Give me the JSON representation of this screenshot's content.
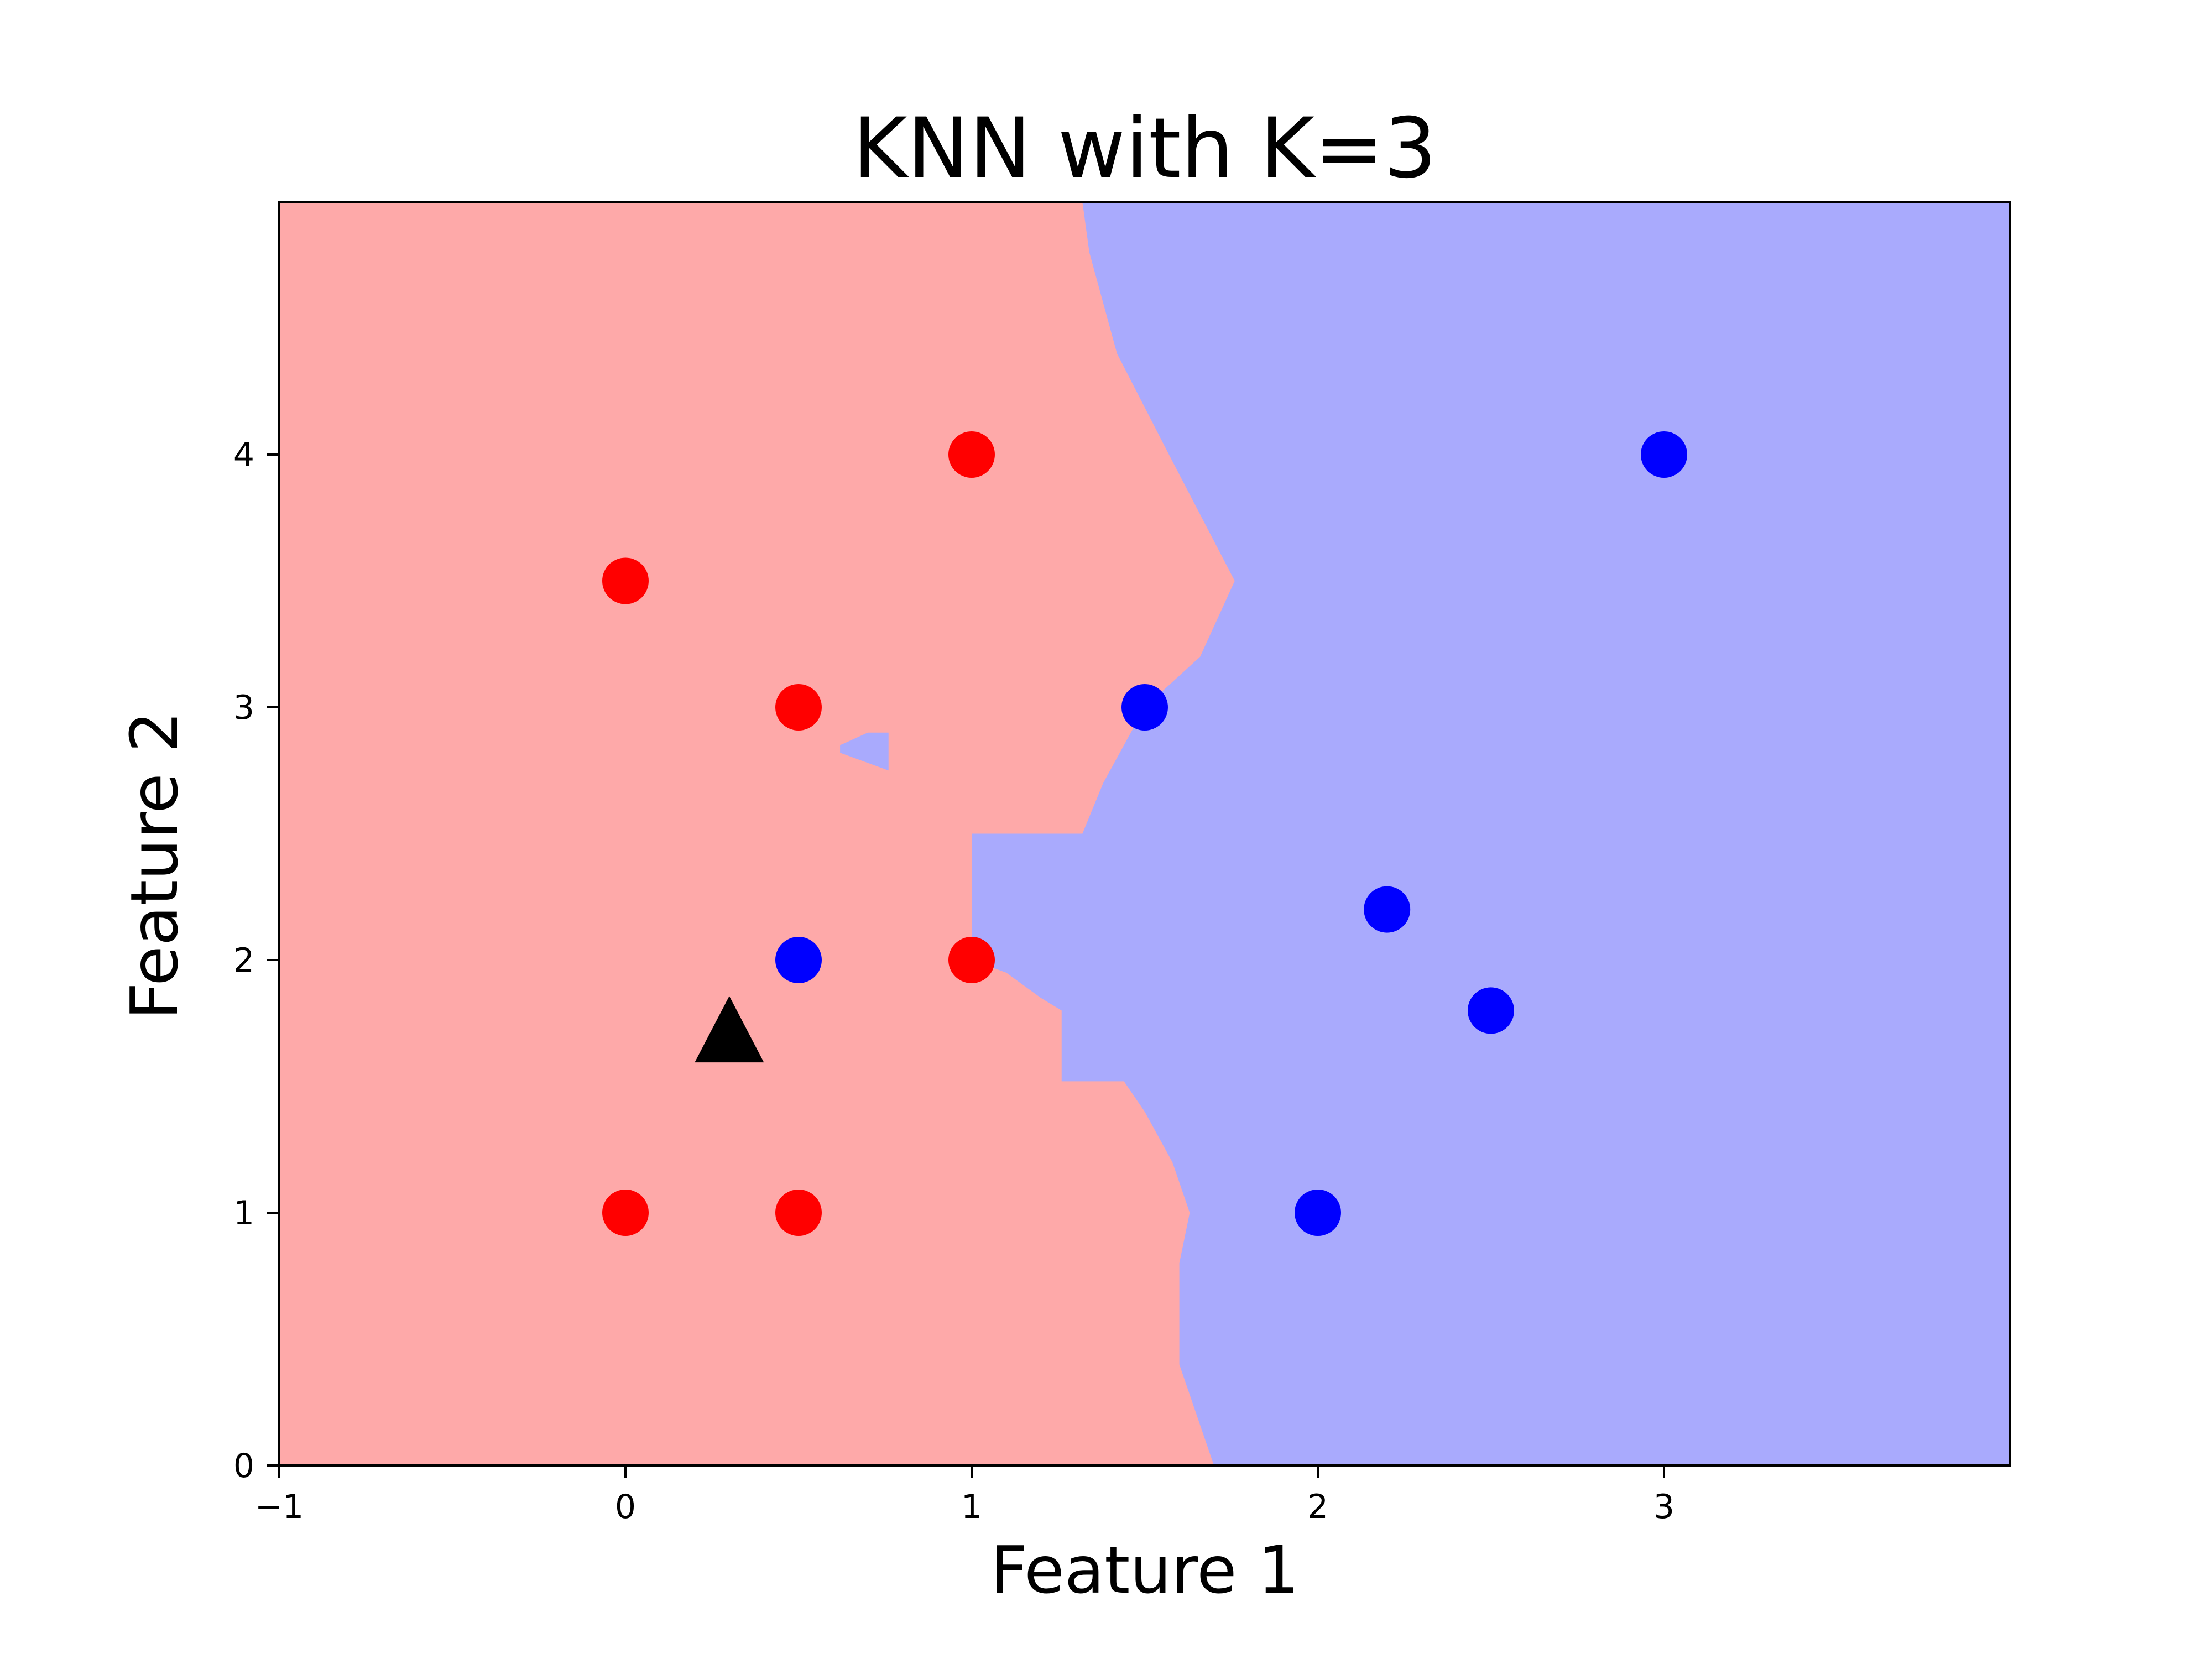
{
  "chart_data": {
    "type": "scatter",
    "title": "KNN with K=3",
    "xlabel": "Feature 1",
    "ylabel": "Feature 2",
    "xlim": [
      -1,
      4
    ],
    "ylim": [
      0,
      5
    ],
    "xticks": [
      {
        "value": -1,
        "label": "−1"
      },
      {
        "value": 0,
        "label": "0"
      },
      {
        "value": 1,
        "label": "1"
      },
      {
        "value": 2,
        "label": "2"
      },
      {
        "value": 3,
        "label": "3"
      }
    ],
    "yticks": [
      {
        "value": 0,
        "label": "0"
      },
      {
        "value": 1,
        "label": "1"
      },
      {
        "value": 2,
        "label": "2"
      },
      {
        "value": 3,
        "label": "3"
      },
      {
        "value": 4,
        "label": "4"
      }
    ],
    "grid": false,
    "colors": {
      "class_red_point": "#ff0000",
      "class_blue_point": "#0000ff",
      "region_red": "#fea9a9",
      "region_blue": "#a9aafd",
      "query_point": "#000000"
    },
    "decision_region": {
      "description_class": "red region on left, blue region on right",
      "boundary_x_at_y": [
        {
          "y": 5.0,
          "x": 1.32
        },
        {
          "y": 4.8,
          "x": 1.34
        },
        {
          "y": 4.4,
          "x": 1.42
        },
        {
          "y": 4.0,
          "x": 1.57
        },
        {
          "y": 3.5,
          "x": 1.76
        },
        {
          "y": 3.2,
          "x": 1.66
        },
        {
          "y": 3.0,
          "x": 1.5
        },
        {
          "y": 2.7,
          "x": 1.38
        },
        {
          "y": 2.5,
          "x": 1.32
        },
        {
          "y": 2.5,
          "x": 1.0
        },
        {
          "y": 2.0,
          "x": 1.0
        },
        {
          "y": 1.95,
          "x": 1.1
        },
        {
          "y": 1.85,
          "x": 1.2
        },
        {
          "y": 1.8,
          "x": 1.26
        },
        {
          "y": 1.52,
          "x": 1.26
        },
        {
          "y": 1.52,
          "x": 1.44
        },
        {
          "y": 1.4,
          "x": 1.5
        },
        {
          "y": 1.2,
          "x": 1.58
        },
        {
          "y": 1.0,
          "x": 1.63
        },
        {
          "y": 0.8,
          "x": 1.6
        },
        {
          "y": 0.4,
          "x": 1.6
        },
        {
          "y": 0.2,
          "x": 1.65
        },
        {
          "y": 0.0,
          "x": 1.7
        }
      ],
      "blue_island": [
        {
          "x": 0.62,
          "y": 2.85
        },
        {
          "x": 0.7,
          "y": 2.9
        },
        {
          "x": 0.76,
          "y": 2.9
        },
        {
          "x": 0.76,
          "y": 2.75
        },
        {
          "x": 0.62,
          "y": 2.82
        }
      ]
    },
    "series": [
      {
        "color": "#ff0000",
        "points": [
          {
            "x": 1.0,
            "y": 4.0
          },
          {
            "x": 0.0,
            "y": 3.5
          },
          {
            "x": 0.5,
            "y": 3.0
          },
          {
            "x": 1.0,
            "y": 2.0
          },
          {
            "x": 0.0,
            "y": 1.0
          },
          {
            "x": 0.5,
            "y": 1.0
          }
        ]
      },
      {
        "color": "#0000ff",
        "points": [
          {
            "x": 3.0,
            "y": 4.0
          },
          {
            "x": 1.5,
            "y": 3.0
          },
          {
            "x": 0.5,
            "y": 2.0
          },
          {
            "x": 2.2,
            "y": 2.2
          },
          {
            "x": 2.5,
            "y": 1.8
          },
          {
            "x": 2.0,
            "y": 1.0
          }
        ]
      },
      {
        "color": "#000000",
        "marker": "triangle",
        "points": [
          {
            "x": 0.3,
            "y": 1.7
          }
        ]
      }
    ]
  }
}
